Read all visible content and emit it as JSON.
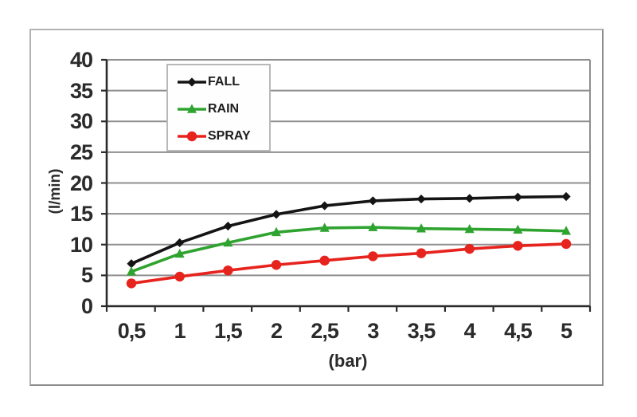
{
  "page": {
    "background": "#ffffff"
  },
  "card": {
    "background": "#ffffff",
    "border_color": "#8d8d8d"
  },
  "chart_data": {
    "type": "line",
    "title": "",
    "xlabel": "(bar)",
    "ylabel": "(l/min)",
    "x": [
      0.5,
      1,
      1.5,
      2,
      2.5,
      3,
      3.5,
      4,
      4.5,
      5
    ],
    "x_tick_labels": [
      "0,5",
      "1",
      "1,5",
      "2",
      "2,5",
      "3",
      "3,5",
      "4",
      "4,5",
      "5"
    ],
    "y_ticks": [
      0,
      5,
      10,
      15,
      20,
      25,
      30,
      35,
      40
    ],
    "y_tick_labels": [
      "0",
      "5",
      "10",
      "15",
      "20",
      "25",
      "30",
      "35",
      "40"
    ],
    "ylim": [
      0,
      40
    ],
    "grid": true,
    "legend_position": "inside-top-left",
    "colors": {
      "grid": "#8f8f8f",
      "axis": "#2a2a2a",
      "text": "#2b2b2b"
    },
    "series": [
      {
        "name": "FALL",
        "color": "#141414",
        "marker": "diamond",
        "values": [
          6.9,
          10.3,
          13.0,
          14.9,
          16.3,
          17.1,
          17.4,
          17.5,
          17.7,
          17.8
        ]
      },
      {
        "name": "RAIN",
        "color": "#2fa32f",
        "marker": "triangle",
        "values": [
          5.6,
          8.5,
          10.3,
          12.0,
          12.7,
          12.8,
          12.6,
          12.5,
          12.4,
          12.2
        ]
      },
      {
        "name": "SPRAY",
        "color": "#e7231e",
        "marker": "circle",
        "values": [
          3.7,
          4.8,
          5.8,
          6.7,
          7.4,
          8.1,
          8.6,
          9.3,
          9.8,
          10.1
        ]
      }
    ]
  }
}
